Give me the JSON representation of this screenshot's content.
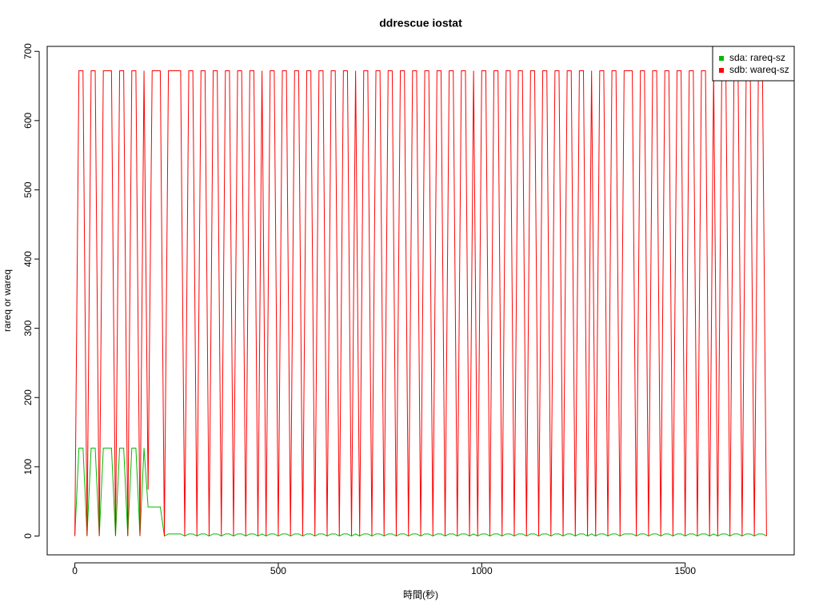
{
  "chart_data": {
    "type": "line",
    "title": "ddrescue iostat",
    "xlabel": "時間(秒)",
    "ylabel": "rareq or wareq",
    "x": [
      0,
      10,
      20,
      30,
      40,
      50,
      60,
      70,
      80,
      90,
      100,
      110,
      120,
      130,
      140,
      150,
      160,
      170,
      180,
      190,
      200,
      210,
      220,
      230,
      240,
      250,
      260,
      270,
      280,
      290,
      300,
      310,
      320,
      330,
      340,
      350,
      360,
      370,
      380,
      390,
      400,
      410,
      420,
      430,
      440,
      450,
      460,
      470,
      480,
      490,
      500,
      510,
      520,
      530,
      540,
      550,
      560,
      570,
      580,
      590,
      600,
      610,
      620,
      630,
      640,
      650,
      660,
      670,
      680,
      690,
      700,
      710,
      720,
      730,
      740,
      750,
      760,
      770,
      780,
      790,
      800,
      810,
      820,
      830,
      840,
      850,
      860,
      870,
      880,
      890,
      900,
      910,
      920,
      930,
      940,
      950,
      960,
      970,
      980,
      990,
      1000,
      1010,
      1020,
      1030,
      1040,
      1050,
      1060,
      1070,
      1080,
      1090,
      1100,
      1110,
      1120,
      1130,
      1140,
      1150,
      1160,
      1170,
      1180,
      1190,
      1200,
      1210,
      1220,
      1230,
      1240,
      1250,
      1260,
      1270,
      1280,
      1290,
      1300,
      1310,
      1320,
      1330,
      1340,
      1350,
      1360,
      1370,
      1380,
      1390,
      1400,
      1410,
      1420,
      1430,
      1440,
      1450,
      1460,
      1470,
      1480,
      1490,
      1500,
      1510,
      1520,
      1530,
      1540,
      1550,
      1560,
      1570,
      1580,
      1590,
      1600,
      1610,
      1620,
      1630,
      1640,
      1650,
      1660,
      1670,
      1680,
      1690,
      1700
    ],
    "series": [
      {
        "name": "sda: rareq-sz",
        "color": "#00bb00",
        "values": [
          0,
          127,
          127,
          0,
          127,
          127,
          0,
          127,
          127,
          127,
          0,
          127,
          127,
          0,
          127,
          127,
          0,
          127,
          42,
          42,
          42,
          42,
          0,
          3,
          3,
          3,
          3,
          0,
          3,
          3,
          0,
          3,
          3,
          0,
          3,
          3,
          0,
          3,
          3,
          0,
          3,
          3,
          0,
          3,
          3,
          0,
          3,
          0,
          3,
          3,
          0,
          3,
          3,
          0,
          3,
          3,
          0,
          3,
          3,
          0,
          3,
          3,
          0,
          3,
          3,
          0,
          3,
          3,
          0,
          3,
          0,
          3,
          3,
          0,
          3,
          3,
          0,
          3,
          3,
          0,
          3,
          3,
          0,
          3,
          3,
          0,
          3,
          3,
          0,
          3,
          3,
          0,
          3,
          3,
          0,
          3,
          3,
          0,
          3,
          0,
          3,
          3,
          0,
          3,
          3,
          0,
          3,
          3,
          0,
          3,
          3,
          0,
          3,
          3,
          0,
          3,
          3,
          0,
          3,
          3,
          0,
          3,
          3,
          0,
          3,
          3,
          0,
          3,
          0,
          3,
          3,
          0,
          3,
          3,
          0,
          3,
          3,
          3,
          0,
          3,
          3,
          0,
          3,
          3,
          0,
          3,
          3,
          0,
          3,
          3,
          0,
          3,
          3,
          0,
          3,
          3,
          0,
          3,
          0,
          3,
          3,
          0,
          3,
          3,
          0,
          3,
          3,
          0,
          3,
          3,
          0
        ]
      },
      {
        "name": "sdb: wareq-sz",
        "color": "#ff0000",
        "values": [
          0,
          672,
          672,
          0,
          672,
          672,
          0,
          672,
          672,
          672,
          0,
          672,
          672,
          0,
          672,
          672,
          0,
          672,
          67,
          672,
          672,
          672,
          0,
          672,
          672,
          672,
          672,
          0,
          672,
          672,
          0,
          672,
          672,
          0,
          672,
          672,
          0,
          672,
          672,
          0,
          672,
          672,
          0,
          672,
          672,
          0,
          672,
          0,
          672,
          672,
          0,
          672,
          672,
          0,
          672,
          672,
          0,
          672,
          672,
          0,
          672,
          672,
          0,
          672,
          672,
          0,
          672,
          672,
          0,
          672,
          0,
          672,
          672,
          0,
          672,
          672,
          0,
          672,
          672,
          0,
          672,
          672,
          0,
          672,
          672,
          0,
          672,
          672,
          0,
          672,
          672,
          0,
          672,
          672,
          0,
          672,
          672,
          0,
          672,
          0,
          672,
          672,
          0,
          672,
          672,
          0,
          672,
          672,
          0,
          672,
          672,
          0,
          672,
          672,
          0,
          672,
          672,
          0,
          672,
          672,
          0,
          672,
          672,
          0,
          672,
          672,
          0,
          672,
          0,
          672,
          672,
          0,
          672,
          672,
          0,
          672,
          672,
          672,
          0,
          672,
          672,
          0,
          672,
          672,
          0,
          672,
          672,
          0,
          672,
          672,
          0,
          672,
          672,
          0,
          672,
          672,
          0,
          672,
          0,
          672,
          672,
          0,
          672,
          672,
          0,
          672,
          672,
          0,
          672,
          672,
          0
        ]
      }
    ],
    "xlim": [
      -68,
      1768
    ],
    "xticks": [
      0,
      500,
      1000,
      1500
    ],
    "ylim": [
      -27.2,
      707.2
    ],
    "yticks": [
      0,
      100,
      200,
      300,
      400,
      500,
      600,
      700
    ],
    "legend": "top-right",
    "grid": false
  }
}
